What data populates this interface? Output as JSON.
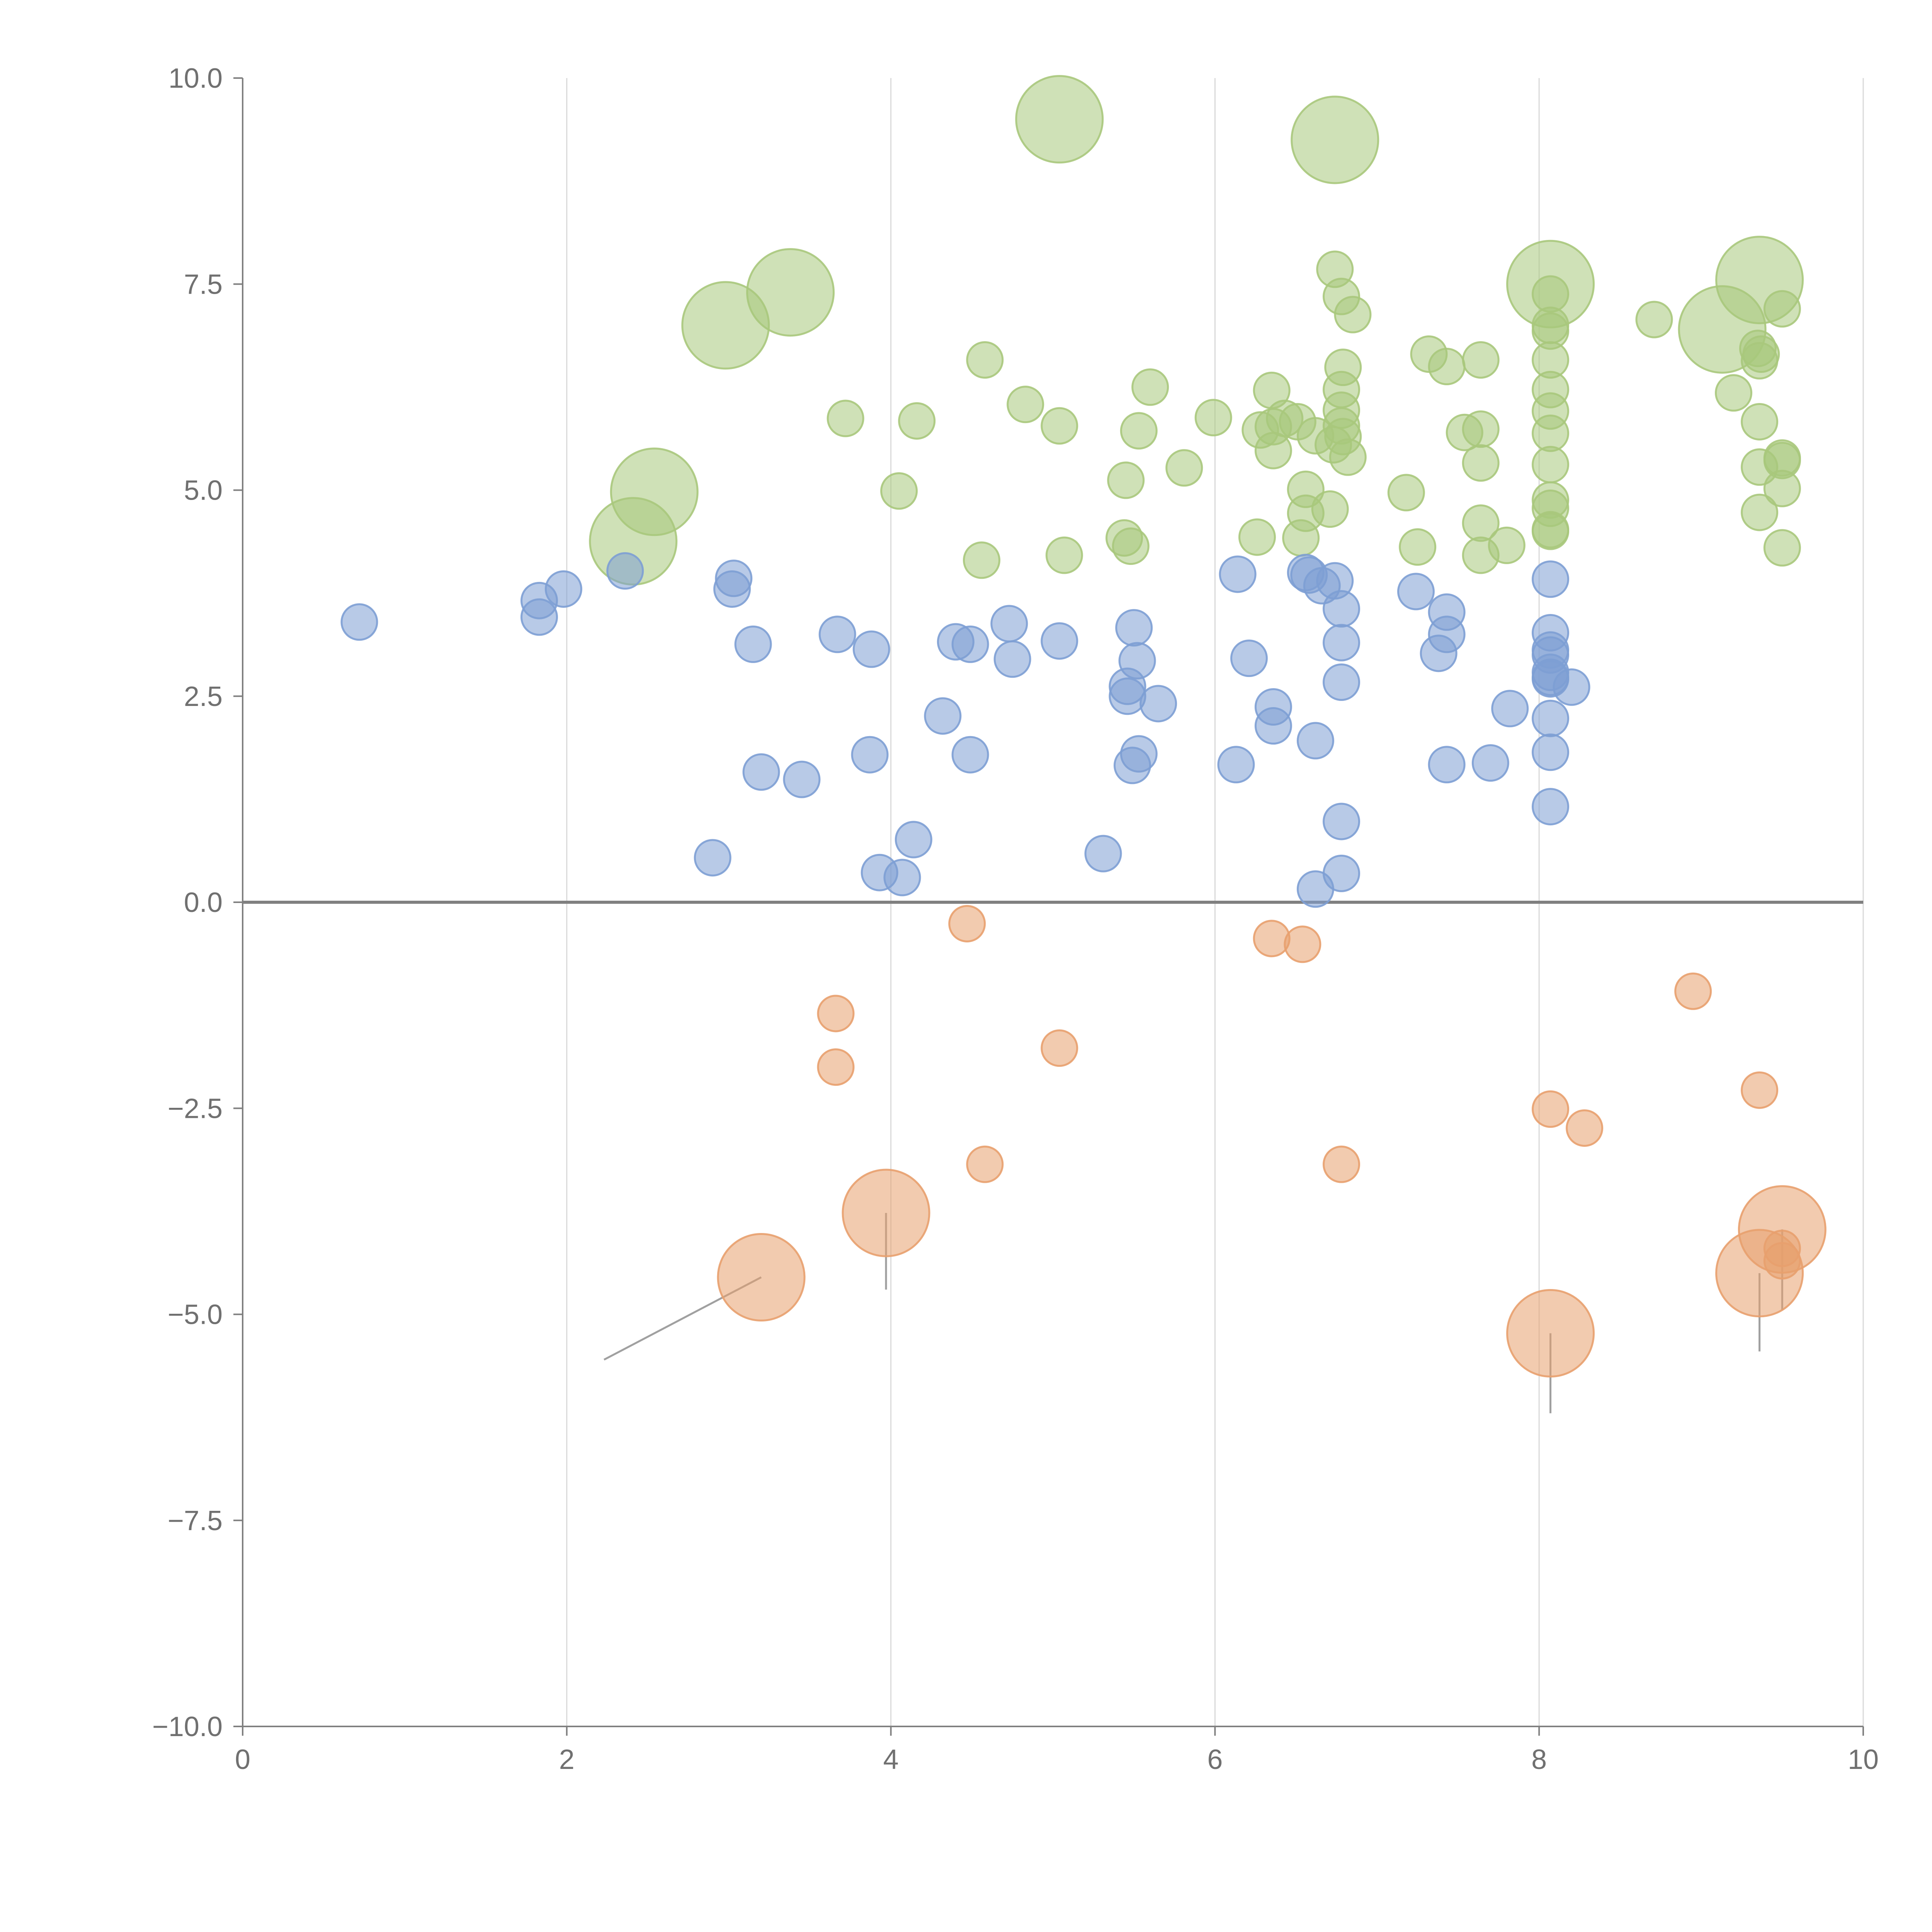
{
  "chart_data": {
    "type": "scatter",
    "title": "",
    "xlabel": "",
    "ylabel": "",
    "xlim": [
      0,
      10
    ],
    "ylim": [
      -10,
      10
    ],
    "x_ticks": [
      "0",
      "2",
      "4",
      "6",
      "8",
      "10"
    ],
    "x_tick_values": [
      0,
      2,
      4,
      6,
      8,
      10
    ],
    "y_ticks": [
      "10.0",
      "7.5",
      "5.0",
      "2.5",
      "0.0",
      "−2.5",
      "−5.0",
      "−7.5",
      "−10.0"
    ],
    "y_tick_values": [
      10,
      7.5,
      5,
      2.5,
      0,
      -2.5,
      -5,
      -7.5,
      -10
    ],
    "grid": "vertical",
    "colors": {
      "green": "#a8c87c",
      "blue": "#7d9fd4",
      "orange": "#e8a06e",
      "grid": "#d9d9d9",
      "axis": "#808080",
      "leader_light": "#ffffff",
      "leader_dark": "#a0a0a0"
    },
    "series": [
      {
        "name": "green",
        "color": "#a8c87c",
        "points": [
          [
            5.04,
            9.5,
            2
          ],
          [
            6.74,
            9.25,
            2
          ],
          [
            3.38,
            7.4,
            2
          ],
          [
            2.98,
            7.0,
            2
          ],
          [
            2.54,
            4.98,
            2
          ],
          [
            2.41,
            4.38,
            2
          ],
          [
            8.07,
            7.5,
            2
          ],
          [
            9.36,
            7.55,
            2
          ],
          [
            9.13,
            6.95,
            2
          ],
          [
            6.74,
            7.68,
            1
          ],
          [
            6.78,
            7.35,
            1
          ],
          [
            6.85,
            7.13,
            1
          ],
          [
            6.79,
            6.49,
            1
          ],
          [
            6.78,
            6.22,
            1
          ],
          [
            6.78,
            5.97,
            1
          ],
          [
            6.78,
            5.78,
            1
          ],
          [
            6.79,
            5.65,
            1
          ],
          [
            6.73,
            5.55,
            1
          ],
          [
            6.82,
            5.4,
            1
          ],
          [
            6.71,
            4.77,
            1
          ],
          [
            6.56,
            5.01,
            1
          ],
          [
            6.56,
            4.72,
            1
          ],
          [
            6.53,
            4.42,
            1
          ],
          [
            6.62,
            5.66,
            1
          ],
          [
            6.51,
            5.83,
            1
          ],
          [
            6.43,
            5.87,
            1
          ],
          [
            6.36,
            5.77,
            1
          ],
          [
            6.28,
            5.73,
            1
          ],
          [
            6.36,
            5.48,
            1
          ],
          [
            6.35,
            6.21,
            1
          ],
          [
            6.26,
            4.43,
            1
          ],
          [
            5.99,
            5.88,
            1
          ],
          [
            5.81,
            5.27,
            1
          ],
          [
            5.6,
            6.25,
            1
          ],
          [
            5.53,
            5.72,
            1
          ],
          [
            5.45,
            5.12,
            1
          ],
          [
            5.44,
            4.42,
            1
          ],
          [
            5.48,
            4.32,
            1
          ],
          [
            5.07,
            4.21,
            1
          ],
          [
            5.04,
            5.78,
            1
          ],
          [
            4.83,
            6.04,
            1
          ],
          [
            4.58,
            6.58,
            1
          ],
          [
            4.56,
            4.15,
            1
          ],
          [
            4.16,
            5.84,
            1
          ],
          [
            4.05,
            4.99,
            1
          ],
          [
            3.72,
            5.87,
            1
          ],
          [
            7.32,
            6.65,
            1
          ],
          [
            7.43,
            6.5,
            1
          ],
          [
            7.54,
            5.7,
            1
          ],
          [
            7.64,
            6.58,
            1
          ],
          [
            7.64,
            5.74,
            1
          ],
          [
            7.64,
            5.33,
            1
          ],
          [
            7.64,
            4.6,
            1
          ],
          [
            7.64,
            4.21,
            1
          ],
          [
            7.8,
            4.33,
            1
          ],
          [
            7.25,
            4.31,
            1
          ],
          [
            7.18,
            4.97,
            1
          ],
          [
            8.07,
            7.38,
            1
          ],
          [
            8.07,
            7.0,
            1
          ],
          [
            8.07,
            6.93,
            1
          ],
          [
            8.07,
            6.58,
            1
          ],
          [
            8.07,
            6.22,
            1
          ],
          [
            8.07,
            5.96,
            1
          ],
          [
            8.07,
            5.69,
            1
          ],
          [
            8.07,
            5.31,
            1
          ],
          [
            8.07,
            4.88,
            1
          ],
          [
            8.07,
            4.78,
            1
          ],
          [
            8.07,
            4.52,
            1
          ],
          [
            8.07,
            4.5,
            1
          ],
          [
            8.71,
            7.07,
            1
          ],
          [
            9.2,
            6.18,
            1
          ],
          [
            9.35,
            6.72,
            1
          ],
          [
            9.37,
            6.65,
            1
          ],
          [
            9.36,
            6.57,
            1
          ],
          [
            9.5,
            7.2,
            1
          ],
          [
            9.36,
            5.83,
            1
          ],
          [
            9.5,
            5.39,
            1
          ],
          [
            9.5,
            5.36,
            1
          ],
          [
            9.36,
            5.28,
            1
          ],
          [
            9.5,
            5.02,
            1
          ],
          [
            9.36,
            4.73,
            1
          ],
          [
            9.5,
            4.3,
            1
          ]
        ]
      },
      {
        "name": "blue",
        "color": "#7d9fd4",
        "points": [
          [
            0.72,
            3.4,
            1
          ],
          [
            1.83,
            3.66,
            1
          ],
          [
            1.83,
            3.46,
            1
          ],
          [
            1.98,
            3.8,
            1
          ],
          [
            2.36,
            4.02,
            1
          ],
          [
            3.03,
            3.93,
            1
          ],
          [
            3.02,
            3.8,
            1
          ],
          [
            3.15,
            3.13,
            1
          ],
          [
            3.2,
            1.58,
            1
          ],
          [
            3.45,
            1.49,
            1
          ],
          [
            2.9,
            0.54,
            1
          ],
          [
            3.67,
            3.25,
            1
          ],
          [
            3.88,
            3.07,
            1
          ],
          [
            3.87,
            1.79,
            1
          ],
          [
            3.93,
            0.36,
            1
          ],
          [
            4.07,
            0.3,
            1
          ],
          [
            4.14,
            0.76,
            1
          ],
          [
            4.32,
            2.26,
            1
          ],
          [
            4.4,
            3.16,
            1
          ],
          [
            4.49,
            3.13,
            1
          ],
          [
            4.49,
            1.79,
            1
          ],
          [
            4.73,
            3.38,
            1
          ],
          [
            4.75,
            2.95,
            1
          ],
          [
            5.04,
            3.17,
            1
          ],
          [
            5.31,
            0.59,
            1
          ],
          [
            5.5,
            3.33,
            1
          ],
          [
            5.52,
            2.93,
            1
          ],
          [
            5.46,
            2.62,
            1
          ],
          [
            5.46,
            2.5,
            1
          ],
          [
            5.53,
            1.8,
            1
          ],
          [
            5.49,
            1.66,
            1
          ],
          [
            5.65,
            2.41,
            1
          ],
          [
            6.14,
            3.98,
            1
          ],
          [
            6.21,
            2.96,
            1
          ],
          [
            6.13,
            1.67,
            1
          ],
          [
            6.36,
            2.37,
            1
          ],
          [
            6.36,
            2.14,
            1
          ],
          [
            6.56,
            4.0,
            1
          ],
          [
            6.58,
            3.97,
            1
          ],
          [
            6.66,
            3.84,
            1
          ],
          [
            6.74,
            3.9,
            1
          ],
          [
            6.78,
            3.56,
            1
          ],
          [
            6.78,
            3.15,
            1
          ],
          [
            6.78,
            2.67,
            1
          ],
          [
            6.62,
            1.96,
            1
          ],
          [
            6.78,
            0.98,
            1
          ],
          [
            6.78,
            0.35,
            1
          ],
          [
            6.62,
            0.16,
            1
          ],
          [
            7.24,
            3.77,
            1
          ],
          [
            7.43,
            3.52,
            1
          ],
          [
            7.43,
            3.25,
            1
          ],
          [
            7.38,
            3.02,
            1
          ],
          [
            7.82,
            2.35,
            1
          ],
          [
            7.7,
            1.69,
            1
          ],
          [
            7.43,
            1.67,
            1
          ],
          [
            8.07,
            3.92,
            1
          ],
          [
            8.07,
            3.27,
            1
          ],
          [
            8.07,
            3.06,
            1
          ],
          [
            8.07,
            3.0,
            1
          ],
          [
            8.07,
            2.79,
            1
          ],
          [
            8.07,
            2.73,
            1
          ],
          [
            8.07,
            2.71,
            1
          ],
          [
            8.2,
            2.61,
            1
          ],
          [
            8.07,
            2.23,
            1
          ],
          [
            8.07,
            1.82,
            1
          ],
          [
            8.07,
            1.16,
            1
          ]
        ]
      },
      {
        "name": "orange",
        "color": "#e8a06e",
        "points": [
          [
            3.2,
            -4.55,
            2
          ],
          [
            3.97,
            -3.77,
            2
          ],
          [
            8.07,
            -5.23,
            2
          ],
          [
            9.36,
            -4.5,
            2
          ],
          [
            9.5,
            -3.97,
            2
          ],
          [
            4.47,
            -0.26,
            1
          ],
          [
            6.35,
            -0.44,
            1
          ],
          [
            6.54,
            -0.51,
            1
          ],
          [
            3.66,
            -1.35,
            1
          ],
          [
            3.66,
            -2.0,
            1
          ],
          [
            5.04,
            -1.77,
            1
          ],
          [
            4.58,
            -3.18,
            1
          ],
          [
            6.78,
            -3.18,
            1
          ],
          [
            8.07,
            -2.51,
            1
          ],
          [
            8.28,
            -2.74,
            1
          ],
          [
            8.95,
            -1.08,
            1
          ],
          [
            9.36,
            -2.28,
            1
          ],
          [
            9.5,
            -4.2,
            1
          ],
          [
            9.5,
            -4.35,
            1
          ]
        ]
      }
    ],
    "leader_lines": [
      {
        "color": "light",
        "from": [
          5.04,
          9.5
        ],
        "to": [
          5.3,
          9.55
        ]
      },
      {
        "color": "light",
        "from": [
          6.74,
          9.25
        ],
        "to": [
          6.95,
          9.32
        ]
      },
      {
        "color": "light",
        "from": [
          3.38,
          7.4
        ],
        "to": [
          3.62,
          7.55
        ]
      },
      {
        "color": "light",
        "from": [
          2.98,
          7.0
        ],
        "to": [
          2.88,
          7.28
        ]
      },
      {
        "color": "light",
        "from": [
          2.54,
          4.98
        ],
        "to": [
          2.7,
          5.15
        ]
      },
      {
        "color": "light",
        "from": [
          2.41,
          4.38
        ],
        "to": [
          2.58,
          4.4
        ]
      },
      {
        "color": "light",
        "from": [
          9.36,
          7.55
        ],
        "to": [
          9.36,
          7.9
        ]
      },
      {
        "color": "light",
        "from": [
          9.13,
          6.95
        ],
        "to": [
          9.05,
          6.6
        ]
      },
      {
        "color": "dark",
        "from": [
          3.2,
          -4.55
        ],
        "to": [
          2.23,
          -5.55
        ]
      },
      {
        "color": "dark",
        "from": [
          3.97,
          -3.77
        ],
        "to": [
          3.97,
          -4.7
        ]
      },
      {
        "color": "dark",
        "from": [
          8.07,
          -5.23
        ],
        "to": [
          8.07,
          -6.2
        ]
      },
      {
        "color": "dark",
        "from": [
          9.36,
          -4.5
        ],
        "to": [
          9.36,
          -5.45
        ]
      },
      {
        "color": "dark",
        "from": [
          9.5,
          -3.97
        ],
        "to": [
          9.5,
          -4.95
        ]
      }
    ]
  }
}
